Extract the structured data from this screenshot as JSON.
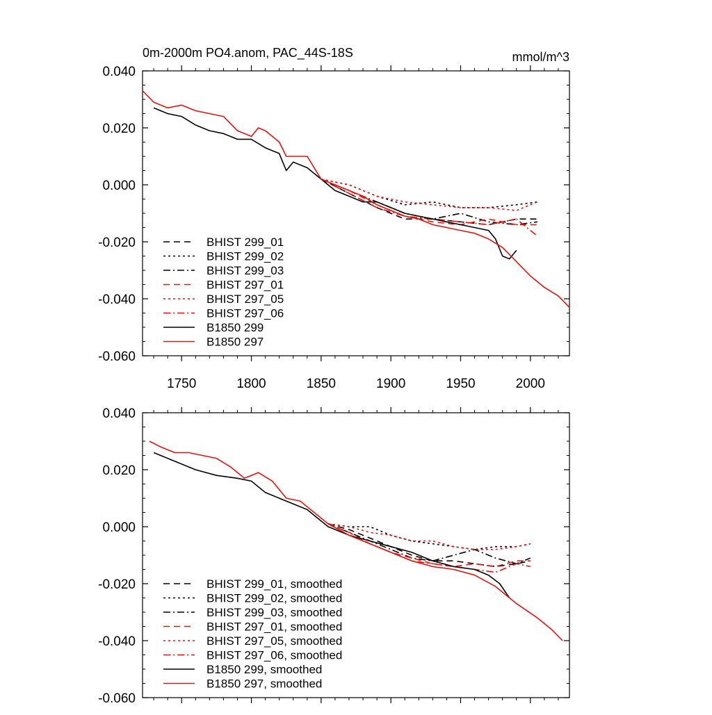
{
  "colors": {
    "black": "#000000",
    "red": "#e8120f"
  },
  "chart_data": [
    {
      "type": "line",
      "title": "0m-2000m PO4.anom, PAC_44S-18S",
      "units": "mmol/m^3",
      "xlim": [
        1722,
        2028
      ],
      "ylim": [
        -0.06,
        0.04
      ],
      "xticks": [
        "1750",
        "1800",
        "1850",
        "1900",
        "1950",
        "2000"
      ],
      "yticks": [
        "0.040",
        "0.020",
        "0.000",
        "-0.020",
        "-0.040",
        "-0.060"
      ],
      "legend_position": "lower-left",
      "series": [
        {
          "name": "BHIST 299_01",
          "color": "black",
          "dash": "dashed",
          "x": [
            1850,
            1870,
            1890,
            1910,
            1930,
            1950,
            1970,
            1990,
            2005
          ],
          "y": [
            0.002,
            -0.003,
            -0.008,
            -0.012,
            -0.012,
            -0.013,
            -0.014,
            -0.012,
            -0.012
          ]
        },
        {
          "name": "BHIST 299_02",
          "color": "black",
          "dash": "dotted",
          "x": [
            1850,
            1870,
            1890,
            1910,
            1930,
            1950,
            1970,
            1990,
            2005
          ],
          "y": [
            0.002,
            0.0,
            -0.004,
            -0.007,
            -0.006,
            -0.008,
            -0.008,
            -0.007,
            -0.006
          ]
        },
        {
          "name": "BHIST 299_03",
          "color": "black",
          "dash": "dashdot",
          "x": [
            1850,
            1870,
            1890,
            1910,
            1930,
            1950,
            1970,
            1990,
            2005
          ],
          "y": [
            0.002,
            -0.002,
            -0.006,
            -0.01,
            -0.012,
            -0.01,
            -0.013,
            -0.014,
            -0.013
          ]
        },
        {
          "name": "BHIST 297_01",
          "color": "red",
          "dash": "dashed",
          "x": [
            1850,
            1870,
            1890,
            1910,
            1930,
            1950,
            1970,
            1990,
            2005
          ],
          "y": [
            0.002,
            -0.002,
            -0.007,
            -0.011,
            -0.013,
            -0.014,
            -0.012,
            -0.014,
            -0.014
          ]
        },
        {
          "name": "BHIST 297_05",
          "color": "red",
          "dash": "dotted",
          "x": [
            1850,
            1870,
            1890,
            1910,
            1930,
            1950,
            1970,
            1990,
            2005
          ],
          "y": [
            0.002,
            0.0,
            -0.004,
            -0.006,
            -0.007,
            -0.008,
            -0.008,
            -0.009,
            -0.006
          ]
        },
        {
          "name": "BHIST 297_06",
          "color": "red",
          "dash": "dashdot",
          "x": [
            1850,
            1870,
            1890,
            1910,
            1930,
            1950,
            1970,
            1990,
            2005
          ],
          "y": [
            0.002,
            -0.003,
            -0.008,
            -0.011,
            -0.012,
            -0.013,
            -0.014,
            -0.012,
            -0.018
          ]
        },
        {
          "name": "B1850 299",
          "color": "black",
          "dash": "solid",
          "x": [
            1730,
            1740,
            1750,
            1760,
            1770,
            1780,
            1790,
            1800,
            1810,
            1820,
            1825,
            1830,
            1840,
            1850,
            1860,
            1870,
            1880,
            1890,
            1900,
            1910,
            1920,
            1930,
            1940,
            1950,
            1960,
            1970,
            1975,
            1980,
            1985,
            1990
          ],
          "y": [
            0.027,
            0.025,
            0.024,
            0.021,
            0.019,
            0.018,
            0.016,
            0.016,
            0.013,
            0.011,
            0.005,
            0.008,
            0.006,
            0.002,
            -0.002,
            -0.004,
            -0.006,
            -0.006,
            -0.008,
            -0.01,
            -0.011,
            -0.012,
            -0.013,
            -0.014,
            -0.015,
            -0.016,
            -0.019,
            -0.025,
            -0.026,
            -0.023
          ]
        },
        {
          "name": "B1850 297",
          "color": "red",
          "dash": "solid",
          "x": [
            1722,
            1730,
            1740,
            1750,
            1760,
            1770,
            1780,
            1790,
            1800,
            1805,
            1810,
            1820,
            1825,
            1830,
            1840,
            1850,
            1860,
            1870,
            1880,
            1890,
            1900,
            1910,
            1920,
            1930,
            1940,
            1950,
            1960,
            1970,
            1980,
            1990,
            2000,
            2010,
            2020,
            2028
          ],
          "y": [
            0.033,
            0.029,
            0.027,
            0.028,
            0.026,
            0.025,
            0.024,
            0.019,
            0.017,
            0.02,
            0.019,
            0.015,
            0.01,
            0.01,
            0.01,
            0.002,
            0.0,
            -0.002,
            -0.004,
            -0.007,
            -0.009,
            -0.011,
            -0.012,
            -0.014,
            -0.015,
            -0.016,
            -0.017,
            -0.019,
            -0.022,
            -0.027,
            -0.032,
            -0.036,
            -0.039,
            -0.043
          ]
        }
      ]
    },
    {
      "type": "line",
      "title": "",
      "units": "",
      "xlim": [
        1722,
        2028
      ],
      "ylim": [
        -0.06,
        0.04
      ],
      "xticks": [],
      "yticks": [
        "0.040",
        "0.020",
        "0.000",
        "-0.020",
        "-0.040",
        "-0.060"
      ],
      "legend_position": "lower-left",
      "series": [
        {
          "name": "BHIST 299_01, smoothed",
          "color": "black",
          "dash": "dashed",
          "x": [
            1855,
            1870,
            1885,
            1900,
            1915,
            1930,
            1945,
            1960,
            1975,
            1990,
            2000
          ],
          "y": [
            0.001,
            -0.001,
            -0.004,
            -0.007,
            -0.01,
            -0.012,
            -0.012,
            -0.013,
            -0.014,
            -0.013,
            -0.012
          ]
        },
        {
          "name": "BHIST 299_02, smoothed",
          "color": "black",
          "dash": "dotted",
          "x": [
            1855,
            1870,
            1885,
            1900,
            1915,
            1930,
            1945,
            1960,
            1975,
            1990,
            2000
          ],
          "y": [
            0.001,
            0.0,
            0.0,
            -0.003,
            -0.005,
            -0.006,
            -0.007,
            -0.008,
            -0.007,
            -0.007,
            -0.006
          ]
        },
        {
          "name": "BHIST 299_03, smoothed",
          "color": "black",
          "dash": "dashdot",
          "x": [
            1855,
            1870,
            1885,
            1900,
            1915,
            1930,
            1945,
            1960,
            1975,
            1990,
            2000
          ],
          "y": [
            0.001,
            -0.002,
            -0.005,
            -0.008,
            -0.011,
            -0.012,
            -0.01,
            -0.008,
            -0.011,
            -0.013,
            -0.011
          ]
        },
        {
          "name": "BHIST 297_01, smoothed",
          "color": "red",
          "dash": "dashed",
          "x": [
            1855,
            1870,
            1885,
            1900,
            1915,
            1930,
            1945,
            1960,
            1975,
            1990,
            2000
          ],
          "y": [
            0.001,
            -0.002,
            -0.006,
            -0.009,
            -0.011,
            -0.013,
            -0.014,
            -0.013,
            -0.014,
            -0.012,
            -0.012
          ]
        },
        {
          "name": "BHIST 297_05, smoothed",
          "color": "red",
          "dash": "dotted",
          "x": [
            1855,
            1870,
            1885,
            1900,
            1915,
            1930,
            1945,
            1960,
            1975,
            1990,
            2000
          ],
          "y": [
            0.001,
            0.0,
            -0.002,
            -0.003,
            -0.005,
            -0.005,
            -0.007,
            -0.008,
            -0.008,
            -0.007,
            -0.006
          ]
        },
        {
          "name": "BHIST 297_06, smoothed",
          "color": "red",
          "dash": "dashdot",
          "x": [
            1855,
            1870,
            1885,
            1900,
            1915,
            1930,
            1945,
            1960,
            1975,
            1990,
            2000
          ],
          "y": [
            0.001,
            -0.003,
            -0.006,
            -0.009,
            -0.012,
            -0.013,
            -0.014,
            -0.015,
            -0.016,
            -0.013,
            -0.014
          ]
        },
        {
          "name": "B1850 299, smoothed",
          "color": "black",
          "dash": "solid",
          "x": [
            1730,
            1745,
            1760,
            1775,
            1790,
            1800,
            1810,
            1825,
            1840,
            1855,
            1870,
            1885,
            1900,
            1915,
            1930,
            1945,
            1960,
            1970,
            1978,
            1985
          ],
          "y": [
            0.026,
            0.023,
            0.02,
            0.018,
            0.017,
            0.016,
            0.012,
            0.009,
            0.006,
            0.0,
            -0.003,
            -0.005,
            -0.007,
            -0.009,
            -0.012,
            -0.014,
            -0.015,
            -0.017,
            -0.02,
            -0.025
          ]
        },
        {
          "name": "B1850 297, smoothed",
          "color": "red",
          "dash": "solid",
          "x": [
            1727,
            1735,
            1745,
            1755,
            1765,
            1775,
            1785,
            1795,
            1805,
            1815,
            1825,
            1835,
            1845,
            1855,
            1870,
            1885,
            1900,
            1915,
            1930,
            1945,
            1960,
            1975,
            1990,
            2005,
            2015,
            2023
          ],
          "y": [
            0.03,
            0.028,
            0.026,
            0.026,
            0.025,
            0.024,
            0.021,
            0.017,
            0.019,
            0.016,
            0.01,
            0.009,
            0.005,
            0.001,
            -0.003,
            -0.006,
            -0.009,
            -0.012,
            -0.014,
            -0.015,
            -0.017,
            -0.021,
            -0.027,
            -0.032,
            -0.036,
            -0.04
          ]
        }
      ]
    }
  ]
}
